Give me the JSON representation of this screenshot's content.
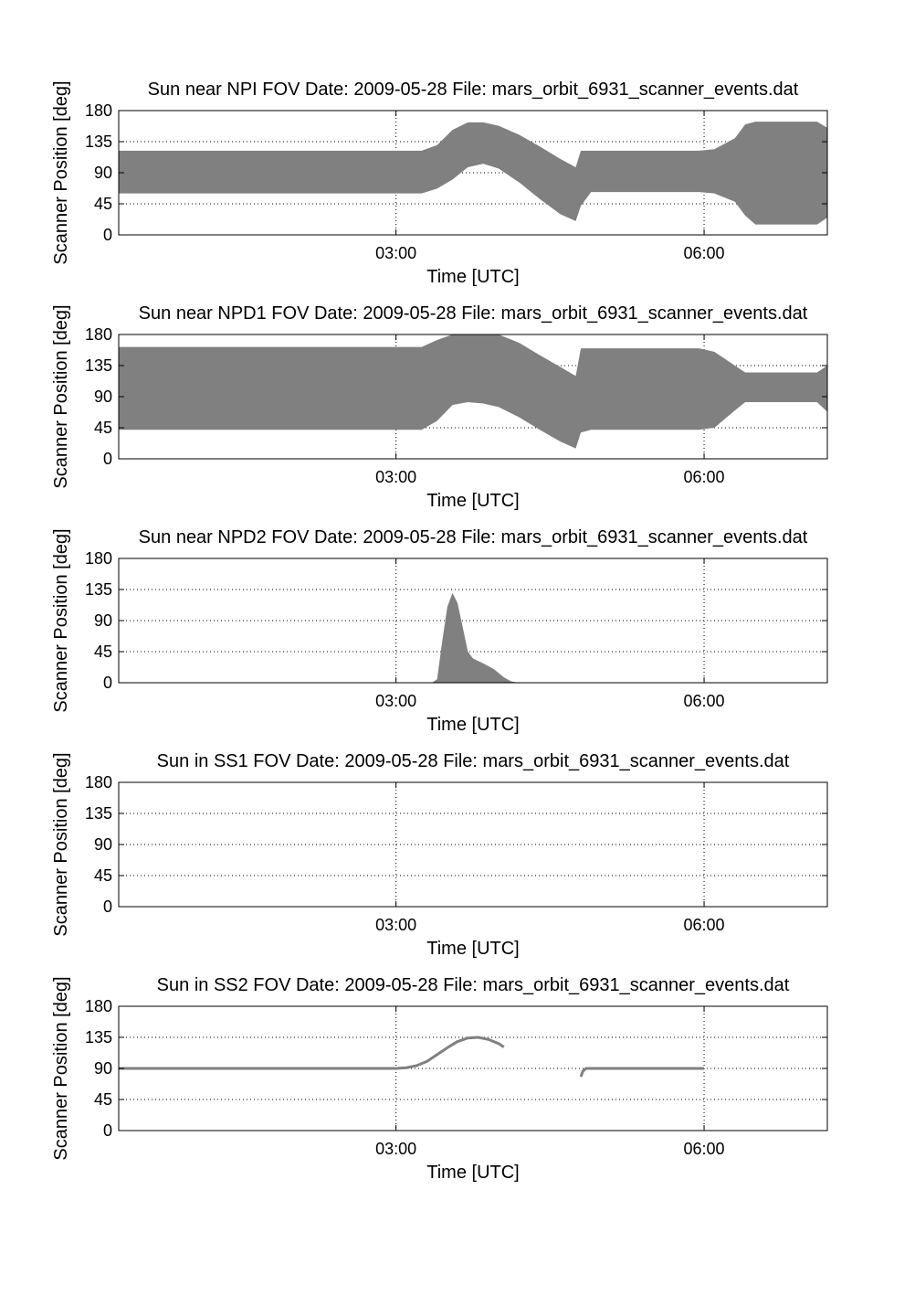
{
  "figure": {
    "colors": {
      "fill": "#808080",
      "axes": "#000000",
      "background": "#ffffff"
    }
  },
  "chart_data": [
    {
      "type": "area",
      "title": "Sun near NPI FOV   Date: 2009-05-28   File: mars_orbit_6931_scanner_events.dat",
      "xlabel": "Time [UTC]",
      "ylabel": "Scanner Position [deg]",
      "x_unit": "hours UTC",
      "xlim": [
        0.3,
        7.2
      ],
      "ylim": [
        0,
        180
      ],
      "yticks": [
        0,
        45,
        90,
        135,
        180
      ],
      "yticklabels": [
        "0",
        "45",
        "90",
        "135",
        "180"
      ],
      "xticks": [
        3,
        6
      ],
      "xticklabels": [
        "03:00",
        "06:00"
      ],
      "grid": true,
      "series": [
        {
          "x": [
            0.3,
            1.0,
            2.0,
            2.9,
            3.0,
            3.25,
            3.4,
            3.55,
            3.7,
            3.85,
            4.0,
            4.2,
            4.4,
            4.6,
            4.75,
            4.8,
            4.9,
            5.0,
            5.5,
            5.95,
            6.1,
            6.3,
            6.4,
            6.5,
            7.0,
            7.1,
            7.2
          ],
          "lower": [
            60,
            60,
            60,
            60,
            60,
            60,
            67,
            80,
            98,
            103,
            96,
            76,
            52,
            30,
            20,
            42,
            62,
            62,
            62,
            62,
            60,
            48,
            28,
            15,
            15,
            15,
            25
          ],
          "upper": [
            122,
            122,
            122,
            122,
            122,
            122,
            130,
            152,
            163,
            163,
            158,
            145,
            128,
            110,
            98,
            122,
            122,
            122,
            122,
            122,
            124,
            140,
            160,
            164,
            164,
            164,
            155
          ]
        }
      ]
    },
    {
      "type": "area",
      "title": "Sun near NPD1 FOV   Date: 2009-05-28   File: mars_orbit_6931_scanner_events.dat",
      "xlabel": "Time [UTC]",
      "ylabel": "Scanner Position [deg]",
      "x_unit": "hours UTC",
      "xlim": [
        0.3,
        7.2
      ],
      "ylim": [
        0,
        180
      ],
      "yticks": [
        0,
        45,
        90,
        135,
        180
      ],
      "yticklabels": [
        "0",
        "45",
        "90",
        "135",
        "180"
      ],
      "xticks": [
        3,
        6
      ],
      "xticklabels": [
        "03:00",
        "06:00"
      ],
      "grid": true,
      "series": [
        {
          "x": [
            0.3,
            1.0,
            2.0,
            2.9,
            3.0,
            3.25,
            3.4,
            3.55,
            3.7,
            3.85,
            4.0,
            4.2,
            4.4,
            4.6,
            4.75,
            4.8,
            4.9,
            5.0,
            5.5,
            5.95,
            6.1,
            6.3,
            6.4,
            6.5,
            7.0,
            7.1,
            7.2
          ],
          "lower": [
            42,
            42,
            42,
            42,
            42,
            42,
            55,
            78,
            82,
            80,
            75,
            60,
            42,
            25,
            15,
            38,
            42,
            42,
            42,
            42,
            45,
            70,
            82,
            82,
            82,
            82,
            68
          ],
          "upper": [
            162,
            162,
            162,
            162,
            162,
            162,
            172,
            180,
            180,
            180,
            180,
            168,
            150,
            133,
            120,
            160,
            160,
            160,
            160,
            160,
            155,
            135,
            125,
            125,
            125,
            125,
            135
          ]
        }
      ]
    },
    {
      "type": "area",
      "title": "Sun near NPD2 FOV   Date: 2009-05-28   File: mars_orbit_6931_scanner_events.dat",
      "xlabel": "Time [UTC]",
      "ylabel": "Scanner Position [deg]",
      "x_unit": "hours UTC",
      "xlim": [
        0.3,
        7.2
      ],
      "ylim": [
        0,
        180
      ],
      "yticks": [
        0,
        45,
        90,
        135,
        180
      ],
      "yticklabels": [
        "0",
        "45",
        "90",
        "135",
        "180"
      ],
      "xticks": [
        3,
        6
      ],
      "xticklabels": [
        "03:00",
        "06:00"
      ],
      "grid": true,
      "series": [
        {
          "x": [
            0.3,
            3.35,
            3.4,
            3.45,
            3.5,
            3.55,
            3.6,
            3.65,
            3.7,
            3.75,
            3.85,
            3.95,
            4.05,
            4.12,
            4.2,
            7.2
          ],
          "lower": [
            0,
            0,
            0,
            0,
            0,
            0,
            0,
            0,
            0,
            0,
            0,
            0,
            0,
            0,
            0,
            0
          ],
          "upper": [
            0,
            0,
            5,
            60,
            110,
            130,
            115,
            80,
            45,
            35,
            28,
            20,
            8,
            2,
            0,
            0
          ]
        }
      ]
    },
    {
      "type": "area",
      "title": "Sun in SS1 FOV   Date: 2009-05-28   File: mars_orbit_6931_scanner_events.dat",
      "xlabel": "Time [UTC]",
      "ylabel": "Scanner Position [deg]",
      "x_unit": "hours UTC",
      "xlim": [
        0.3,
        7.2
      ],
      "ylim": [
        0,
        180
      ],
      "yticks": [
        0,
        45,
        90,
        135,
        180
      ],
      "yticklabels": [
        "0",
        "45",
        "90",
        "135",
        "180"
      ],
      "xticks": [
        3,
        6
      ],
      "xticklabels": [
        "03:00",
        "06:00"
      ],
      "grid": true,
      "series": []
    },
    {
      "type": "line",
      "title": "Sun in SS2 FOV   Date: 2009-05-28   File: mars_orbit_6931_scanner_events.dat",
      "xlabel": "Time [UTC]",
      "ylabel": "Scanner Position [deg]",
      "x_unit": "hours UTC",
      "xlim": [
        0.3,
        7.2
      ],
      "ylim": [
        0,
        180
      ],
      "yticks": [
        0,
        45,
        90,
        135,
        180
      ],
      "yticklabels": [
        "0",
        "45",
        "90",
        "135",
        "180"
      ],
      "xticks": [
        3,
        6
      ],
      "xticklabels": [
        "03:00",
        "06:00"
      ],
      "grid": true,
      "series": [
        {
          "segments": [
            {
              "x": [
                0.3,
                1.0,
                2.0,
                3.0,
                3.1,
                3.2,
                3.3,
                3.4,
                3.5,
                3.6,
                3.7,
                3.8,
                3.9,
                4.0,
                4.05
              ],
              "y": [
                90,
                90,
                90,
                90,
                91,
                94,
                100,
                110,
                120,
                129,
                134,
                135,
                132,
                126,
                121
              ]
            },
            {
              "x": [
                4.8,
                4.82,
                4.85,
                5.0,
                5.5,
                6.0
              ],
              "y": [
                78,
                86,
                90,
                90,
                90,
                90
              ]
            }
          ]
        }
      ]
    }
  ]
}
